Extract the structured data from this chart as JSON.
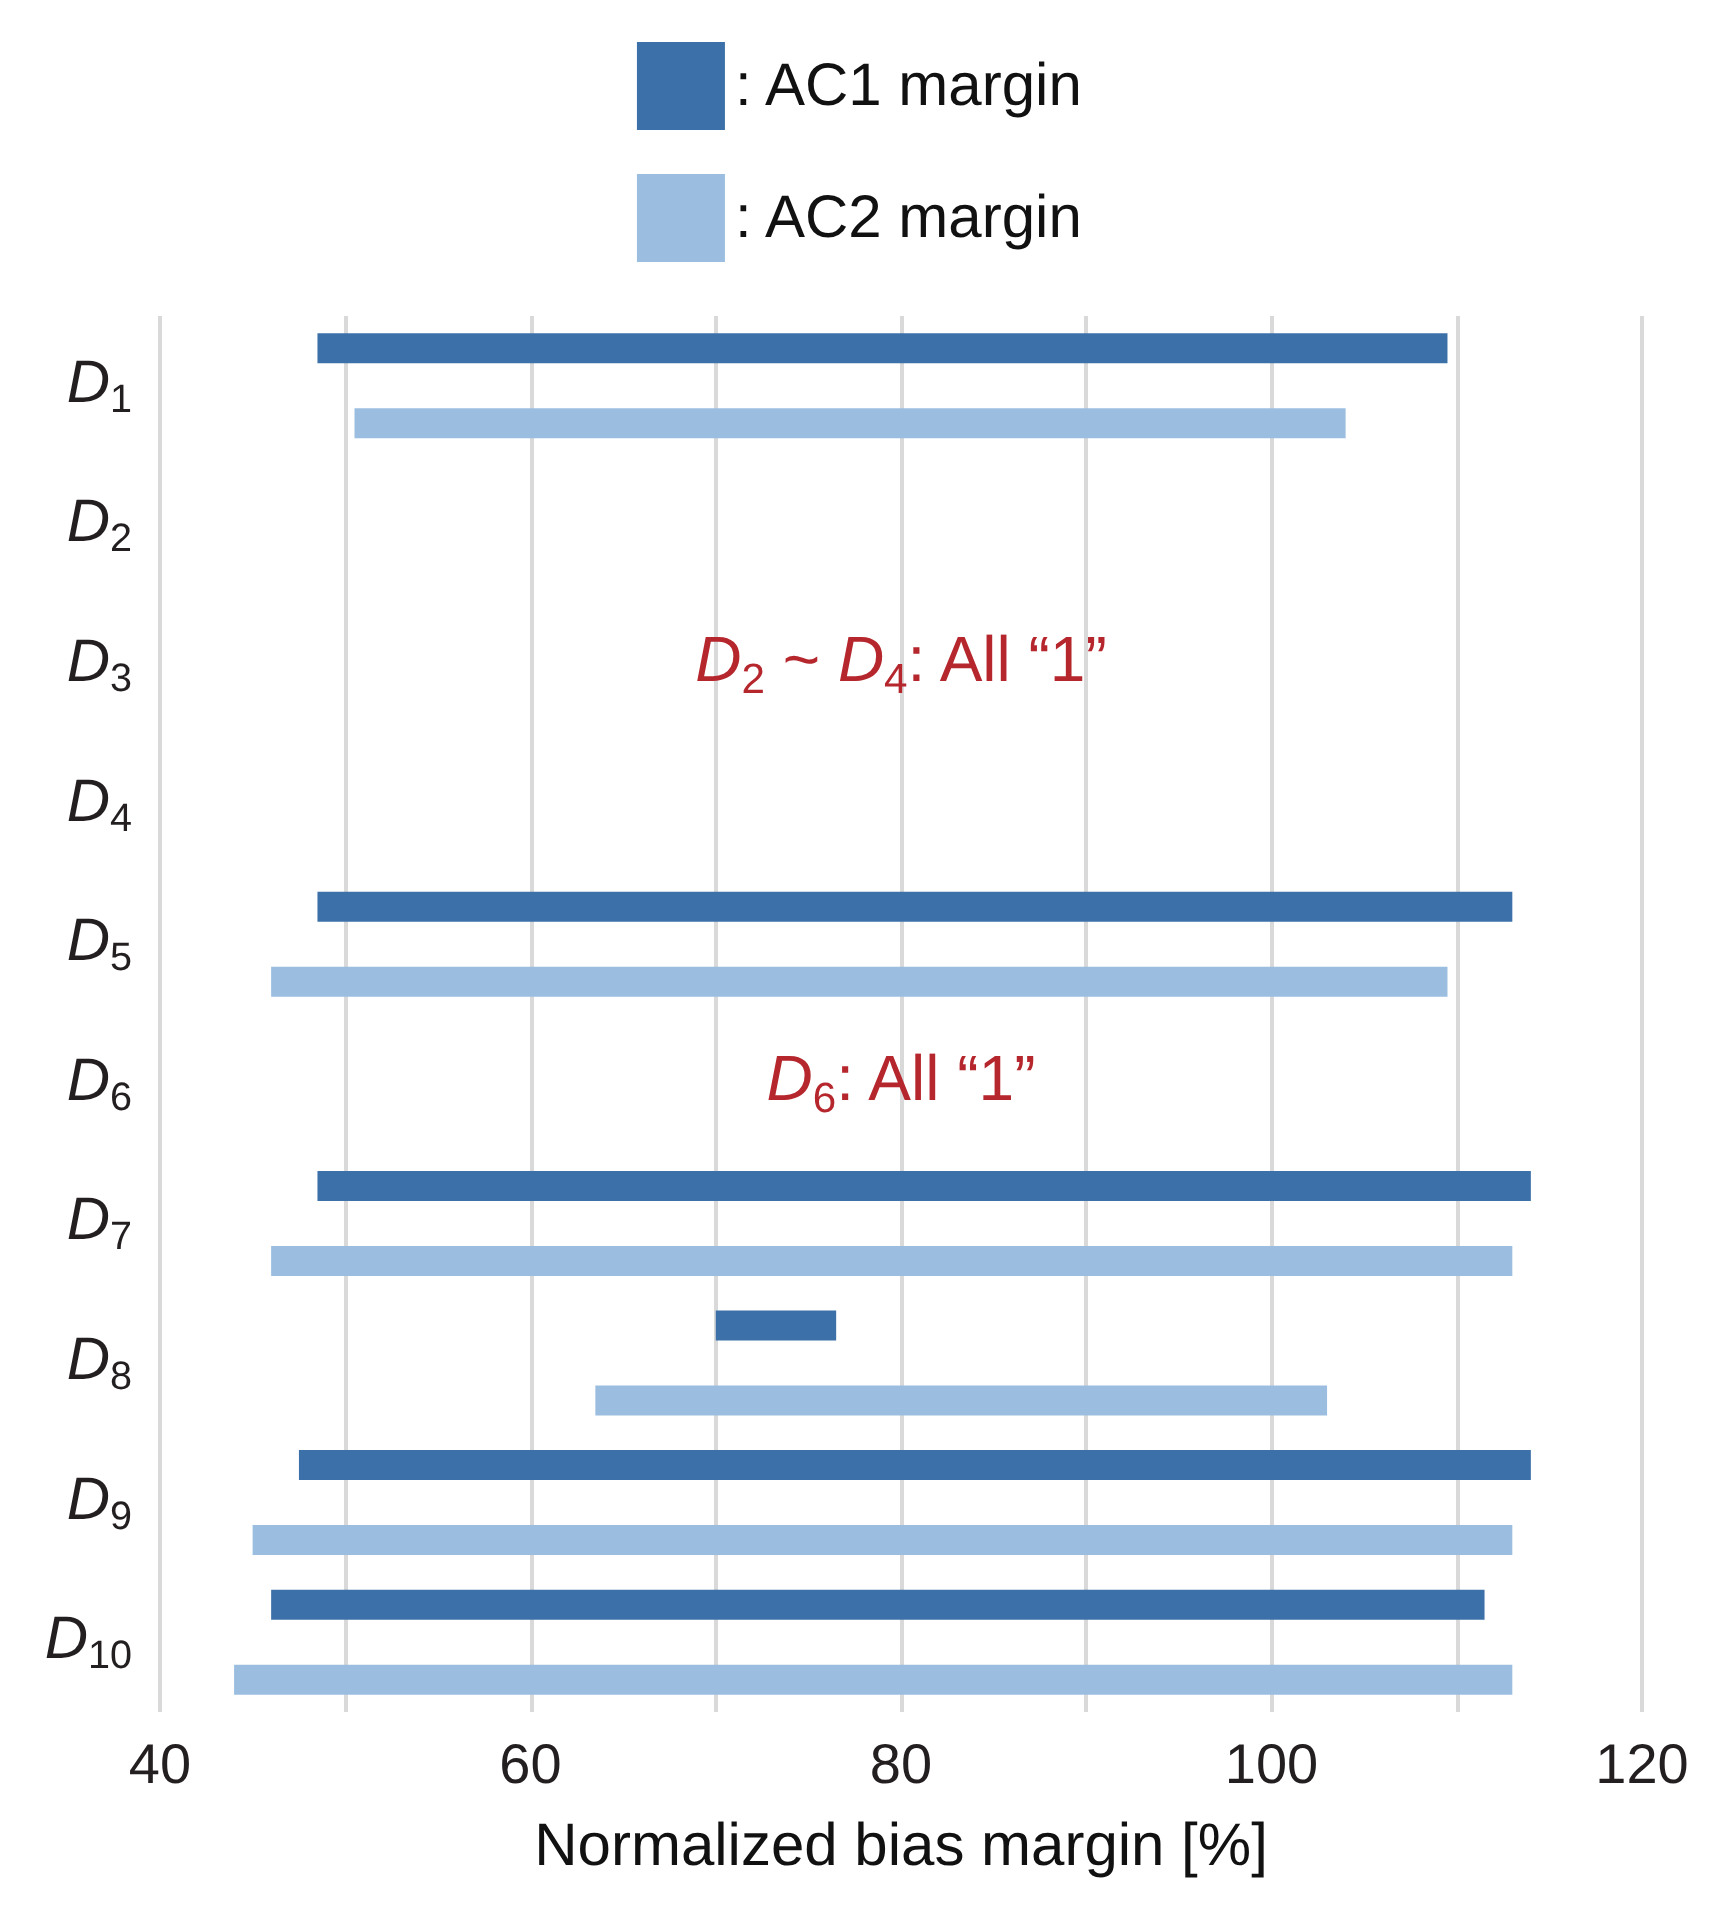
{
  "chart_data": {
    "type": "bar",
    "orientation": "horizontal",
    "xlabel": "Normalized bias margin [%]",
    "categories": [
      "D$_{1}$",
      "D$_{2}$",
      "D$_{3}$",
      "D$_{4}$",
      "D$_{5}$",
      "D$_{6}$",
      "D$_{7}$",
      "D$_{8}$",
      "D$_{9}$",
      "D$_{10}$"
    ],
    "series": [
      {
        "name": ": AC1 margin",
        "color": "#3c70a8",
        "base": [
          48.5,
          null,
          null,
          null,
          48.5,
          null,
          48.5,
          70,
          47.5,
          46
        ],
        "values": [
          61,
          null,
          null,
          null,
          64.5,
          null,
          65.5,
          6.5,
          66.5,
          65.5
        ]
      },
      {
        "name": ": AC2 margin",
        "color": "#9bbde0",
        "base": [
          50.5,
          null,
          null,
          null,
          46,
          null,
          46,
          63.5,
          45,
          44
        ],
        "values": [
          53.5,
          null,
          null,
          null,
          63.5,
          null,
          67,
          39.5,
          68,
          69
        ]
      }
    ],
    "xlim": [
      40,
      120
    ],
    "xticks": [
      40,
      {
        "value": 50,
        "label": null
      },
      60,
      {
        "value": 70,
        "label": null
      },
      80,
      {
        "value": 90,
        "label": null
      },
      100,
      {
        "value": 110,
        "label": null
      },
      120
    ],
    "grid": "x",
    "legend": "top",
    "annotations": [
      "D$_{2}$ ~ D$_{4}$: All “1”",
      "D$_{6}$: All “1”"
    ]
  }
}
